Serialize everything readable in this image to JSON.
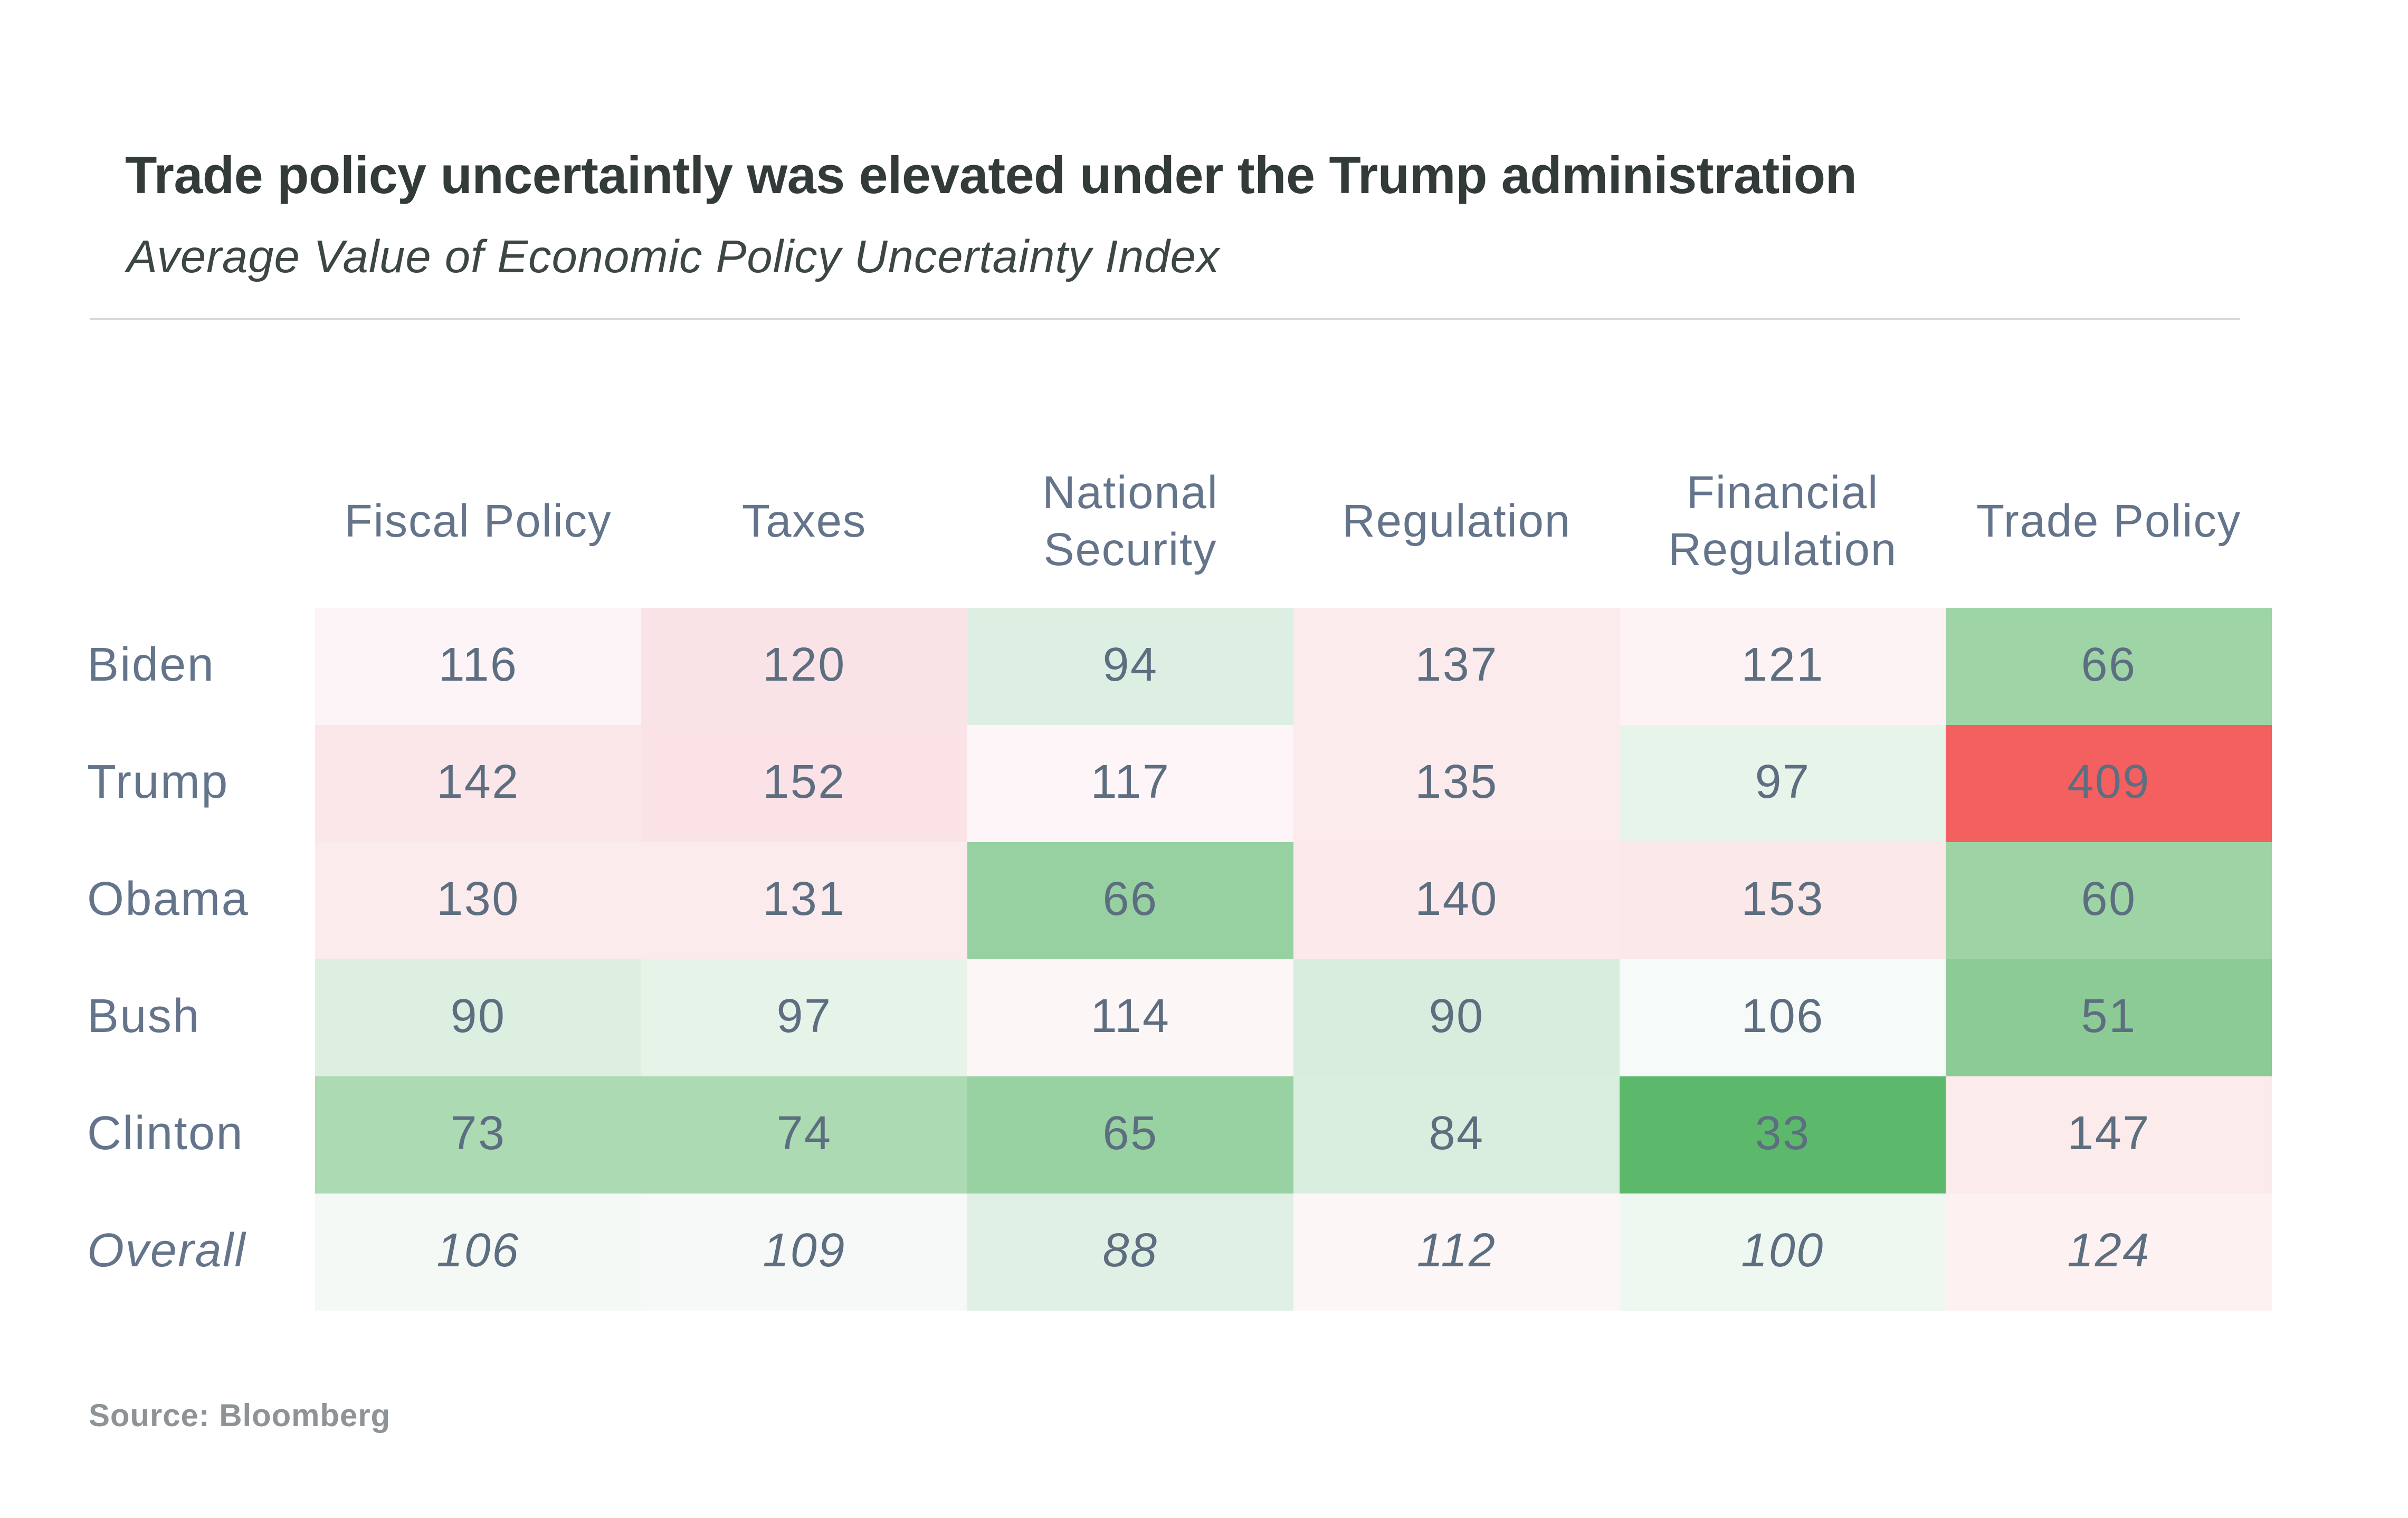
{
  "header": {
    "title": "Trade policy uncertaintly was elevated under the Trump administration",
    "subtitle": "Average Value of Economic Policy Uncertainty Index"
  },
  "source_label": "Source: Bloomberg",
  "chart_data": {
    "type": "heatmap",
    "title": "Trade policy uncertaintly was elevated under the Trump administration",
    "subtitle": "Average Value of Economic Policy Uncertainty Index",
    "columns": [
      "Fiscal Policy",
      "Taxes",
      "National Security",
      "Regulation",
      "Financial Regulation",
      "Trade Policy"
    ],
    "rows": [
      "Biden",
      "Trump",
      "Obama",
      "Bush",
      "Clinton",
      "Overall"
    ],
    "values": [
      [
        116,
        120,
        94,
        137,
        121,
        66
      ],
      [
        142,
        152,
        117,
        135,
        97,
        409
      ],
      [
        130,
        131,
        66,
        140,
        153,
        60
      ],
      [
        90,
        97,
        114,
        90,
        106,
        51
      ],
      [
        73,
        74,
        65,
        84,
        33,
        147
      ],
      [
        106,
        109,
        88,
        112,
        100,
        124
      ]
    ],
    "cell_colors": [
      [
        "#fdf4f7",
        "#fae3e7",
        "#ddefe2",
        "#fcebec",
        "#fdf3f5",
        "#9ed4a6"
      ],
      [
        "#fbe6e9",
        "#fae2e6",
        "#fdf5f7",
        "#fcebed",
        "#e7f4ea",
        "#f4605f"
      ],
      [
        "#fcebed",
        "#fcebed",
        "#97d0a1",
        "#fbe9eb",
        "#fbe8e9",
        "#9ed4a5"
      ],
      [
        "#dcefe1",
        "#e6f3e9",
        "#fdf6f7",
        "#d9edde",
        "#f6faf8",
        "#8cca96"
      ],
      [
        "#abdab3",
        "#abdab3",
        "#98d1a2",
        "#daeedf",
        "#5cb96c",
        "#fcebeb"
      ],
      [
        "#f4f9f6",
        "#f6f9f7",
        "#e0f0e4",
        "#fcf6f7",
        "#eef7f0",
        "#fdf1f1"
      ]
    ],
    "italic_rows": [
      "Overall"
    ],
    "palette": {
      "low_green": "#5cb96c",
      "mid_white": "#ffffff",
      "high_red": "#f4605f"
    },
    "legend_position": "none",
    "grid": "off"
  }
}
